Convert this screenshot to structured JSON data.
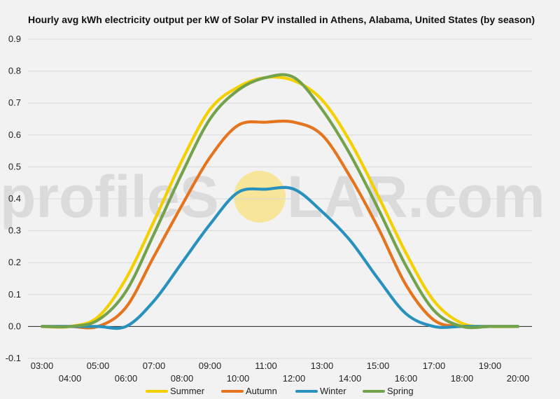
{
  "chart_data": {
    "type": "line",
    "title": "Hourly avg kWh electricity output per kW of Solar PV installed in Athens, Alabama, United States (by season)",
    "xlabel": "",
    "ylabel": "",
    "x_labels": [
      "03:00",
      "04:00",
      "05:00",
      "06:00",
      "07:00",
      "08:00",
      "09:00",
      "10:00",
      "11:00",
      "12:00",
      "13:00",
      "14:00",
      "15:00",
      "16:00",
      "17:00",
      "18:00",
      "19:00",
      "20:00"
    ],
    "y_ticks": [
      "-0.1",
      "0.0",
      "0.1",
      "0.2",
      "0.3",
      "0.4",
      "0.5",
      "0.6",
      "0.7",
      "0.8",
      "0.9"
    ],
    "ylim": [
      -0.1,
      0.9
    ],
    "grid": true,
    "legend_position": "bottom",
    "series": [
      {
        "name": "Summer",
        "color": "#f4d000",
        "values": [
          0.0,
          0.0,
          0.03,
          0.15,
          0.33,
          0.52,
          0.68,
          0.75,
          0.78,
          0.77,
          0.71,
          0.58,
          0.41,
          0.23,
          0.08,
          0.01,
          0.0,
          0.0
        ]
      },
      {
        "name": "Autumn",
        "color": "#e4751e",
        "values": [
          0.0,
          0.0,
          0.0,
          0.06,
          0.22,
          0.38,
          0.53,
          0.63,
          0.64,
          0.64,
          0.6,
          0.47,
          0.31,
          0.13,
          0.02,
          0.0,
          0.0,
          0.0
        ]
      },
      {
        "name": "Winter",
        "color": "#2891bd",
        "values": [
          0.0,
          0.0,
          0.0,
          0.0,
          0.08,
          0.2,
          0.32,
          0.42,
          0.43,
          0.43,
          0.36,
          0.27,
          0.15,
          0.04,
          0.0,
          0.0,
          0.0,
          0.0
        ]
      },
      {
        "name": "Spring",
        "color": "#73a24d",
        "values": [
          0.0,
          0.0,
          0.02,
          0.11,
          0.29,
          0.48,
          0.65,
          0.74,
          0.78,
          0.78,
          0.68,
          0.54,
          0.37,
          0.19,
          0.05,
          0.0,
          0.0,
          0.0
        ]
      }
    ]
  },
  "watermark": {
    "left": "profileS",
    "right": "LAR.com",
    "sun_color": "#f7e59a"
  }
}
